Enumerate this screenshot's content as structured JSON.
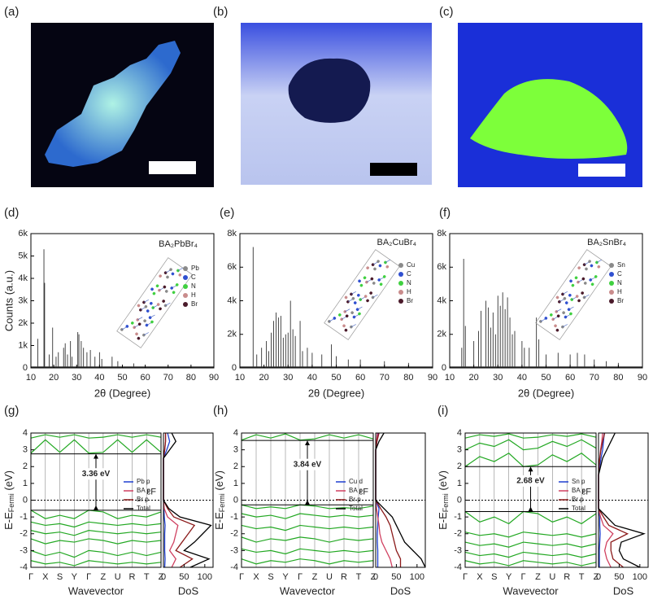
{
  "photos": [
    {
      "panel": "(a)"
    },
    {
      "panel": "(b)"
    },
    {
      "panel": "(c)"
    }
  ],
  "chart_data": [
    {
      "type": "stem",
      "panel": "(d)",
      "title": "BA₂PbBr₄",
      "xlabel": "2θ (Degree)",
      "ylabel": "Counts (a.u.)",
      "color": "#333333",
      "x": [
        13,
        15.7,
        16,
        18,
        19.5,
        21,
        22,
        24.3,
        25,
        26,
        27.3,
        28,
        30.5,
        31,
        32,
        33,
        34.5,
        36,
        38,
        40,
        41,
        45.5,
        48,
        55
      ],
      "values": [
        1300,
        5300,
        3800,
        600,
        1800,
        500,
        700,
        900,
        1100,
        600,
        1200,
        500,
        1600,
        1500,
        1200,
        900,
        700,
        800,
        500,
        700,
        400,
        500,
        300,
        200
      ],
      "xlim": [
        10,
        90
      ],
      "xticks": [
        10,
        20,
        30,
        40,
        50,
        60,
        70,
        80,
        90
      ],
      "ylim": [
        0,
        6000
      ],
      "yticks": [
        0,
        {
          "value": 1000,
          "label": "1k"
        },
        {
          "value": 2000,
          "label": "2k"
        },
        {
          "value": 3000,
          "label": "3k"
        },
        {
          "value": 4000,
          "label": "4k"
        },
        {
          "value": 5000,
          "label": "5k"
        },
        {
          "value": 6000,
          "label": "6k"
        }
      ],
      "inset_legend": [
        {
          "name": "Pb",
          "color": "#8a8a8a"
        },
        {
          "name": "C",
          "color": "#3050d0"
        },
        {
          "name": "N",
          "color": "#40d040"
        },
        {
          "name": "H",
          "color": "#c98c8c"
        },
        {
          "name": "Br",
          "color": "#4a1a2a"
        }
      ]
    },
    {
      "type": "stem",
      "panel": "(e)",
      "title": "BA₂CuBr₄",
      "xlabel": "2θ (Degree)",
      "color": "#333333",
      "x": [
        15.5,
        17,
        19,
        21,
        22,
        23,
        24,
        25,
        26,
        27,
        28,
        29,
        30,
        31,
        32,
        33,
        35,
        36,
        38,
        40,
        44,
        48,
        50,
        55,
        60,
        70,
        80
      ],
      "values": [
        7200,
        800,
        1200,
        1600,
        1000,
        2100,
        2800,
        3300,
        3000,
        3100,
        1800,
        2000,
        2100,
        4000,
        2300,
        1900,
        2800,
        1000,
        1200,
        900,
        800,
        1400,
        700,
        500,
        500,
        400,
        300
      ],
      "xlim": [
        10,
        90
      ],
      "xticks": [
        10,
        20,
        30,
        40,
        50,
        60,
        70,
        80,
        90
      ],
      "ylim": [
        0,
        8000
      ],
      "yticks": [
        0,
        {
          "value": 2000,
          "label": "2k"
        },
        {
          "value": 4000,
          "label": "4k"
        },
        {
          "value": 6000,
          "label": "6k"
        },
        {
          "value": 8000,
          "label": "8k"
        }
      ],
      "inset_legend": [
        {
          "name": "Cu",
          "color": "#8a8a8a"
        },
        {
          "name": "C",
          "color": "#3050d0"
        },
        {
          "name": "N",
          "color": "#40d040"
        },
        {
          "name": "H",
          "color": "#c98c8c"
        },
        {
          "name": "Br",
          "color": "#4a1a2a"
        }
      ]
    },
    {
      "type": "stem",
      "panel": "(f)",
      "title": "BA₂SnBr₄",
      "xlabel": "2θ (Degree)",
      "color": "#333333",
      "x": [
        15,
        15.8,
        16.5,
        20,
        22,
        23,
        25,
        26,
        27,
        28,
        29,
        30,
        31,
        32,
        33,
        34,
        35,
        36,
        37,
        40,
        41,
        43,
        46,
        47,
        50,
        55,
        60,
        63,
        66,
        70,
        75,
        80
      ],
      "values": [
        1200,
        6500,
        2500,
        1600,
        2200,
        3400,
        4000,
        3600,
        2400,
        3300,
        2000,
        4300,
        3700,
        4500,
        3500,
        4200,
        3000,
        2000,
        2200,
        1600,
        1200,
        1200,
        3000,
        1700,
        800,
        900,
        800,
        900,
        800,
        500,
        400,
        300
      ],
      "xlim": [
        10,
        90
      ],
      "xticks": [
        10,
        20,
        30,
        40,
        50,
        60,
        70,
        80,
        90
      ],
      "ylim": [
        0,
        8000
      ],
      "yticks": [
        0,
        {
          "value": 2000,
          "label": "2k"
        },
        {
          "value": 4000,
          "label": "4k"
        },
        {
          "value": 6000,
          "label": "6k"
        },
        {
          "value": 8000,
          "label": "8k"
        }
      ],
      "inset_legend": [
        {
          "name": "Sn",
          "color": "#8a8a8a"
        },
        {
          "name": "C",
          "color": "#3050d0"
        },
        {
          "name": "N",
          "color": "#40d040"
        },
        {
          "name": "H",
          "color": "#c98c8c"
        },
        {
          "name": "Br",
          "color": "#4a1a2a"
        }
      ]
    },
    {
      "type": "band",
      "panel": "(g)",
      "xlabel": "Wavevector",
      "ylabel": "E-E",
      "ylabel_sub": "Fermi",
      "ylabel_tail": " (eV)",
      "color": "#22a822",
      "categories": [
        "Γ",
        "X",
        "S",
        "Y",
        "Γ",
        "Z",
        "U",
        "R",
        "T",
        "Z"
      ],
      "series": [
        {
          "values": [
            2.8,
            3.6,
            2.85,
            3.6,
            2.8,
            2.85,
            3.6,
            2.85,
            3.6,
            2.85
          ]
        },
        {
          "values": [
            3.7,
            3.9,
            3.75,
            3.9,
            3.7,
            3.75,
            3.9,
            3.75,
            3.9,
            3.75
          ]
        },
        {
          "values": [
            -0.6,
            -1.1,
            -0.9,
            -1.1,
            -0.6,
            -0.7,
            -1.1,
            -0.9,
            -1.0,
            -0.7
          ]
        },
        {
          "values": [
            -1.3,
            -1.5,
            -1.4,
            -1.6,
            -1.3,
            -1.4,
            -1.5,
            -1.4,
            -1.5,
            -1.4
          ]
        },
        {
          "values": [
            -1.8,
            -2.0,
            -1.9,
            -2.1,
            -1.8,
            -1.9,
            -2.0,
            -1.9,
            -2.0,
            -1.9
          ]
        },
        {
          "values": [
            -2.3,
            -2.6,
            -2.4,
            -2.5,
            -2.3,
            -2.4,
            -2.6,
            -2.4,
            -2.5,
            -2.4
          ]
        },
        {
          "values": [
            -3.0,
            -3.3,
            -3.1,
            -3.4,
            -3.0,
            -3.1,
            -3.3,
            -3.1,
            -3.3,
            -3.1
          ]
        },
        {
          "values": [
            -3.6,
            -3.8,
            -3.7,
            -3.9,
            -3.6,
            -3.7,
            -3.8,
            -3.7,
            -3.8,
            -3.7
          ]
        }
      ],
      "ylim": [
        -4,
        4
      ],
      "yticks": [
        -4,
        -3,
        -2,
        -1,
        0,
        1,
        2,
        3,
        4
      ],
      "vbm": -0.6,
      "cbm": 2.76,
      "gap_label": "3.36 eV",
      "fermi_label": "εF",
      "dos": {
        "xlabel": "DoS",
        "xlim": [
          0,
          120
        ],
        "xticks": [
          0,
          50,
          100
        ],
        "y": [
          -4,
          -3.5,
          -3,
          -2.5,
          -2,
          -1.5,
          -1,
          -0.5,
          0,
          0.5,
          1,
          1.5,
          2,
          2.5,
          3,
          3.5,
          4
        ],
        "series": [
          {
            "name": "Pb p",
            "color": "#1f3fd0",
            "values": [
              3,
              4,
              3,
              3,
              3,
              4,
              2,
              1,
              0,
              0,
              0,
              0,
              0,
              0,
              8,
              15,
              10
            ]
          },
          {
            "name": "BA p",
            "color": "#d04060",
            "values": [
              20,
              30,
              15,
              25,
              30,
              35,
              10,
              2,
              0,
              0,
              0,
              0,
              0,
              0,
              3,
              5,
              5
            ]
          },
          {
            "name": "Br p",
            "color": "#8b1a1a",
            "values": [
              40,
              70,
              30,
              45,
              60,
              75,
              25,
              10,
              0,
              0,
              0,
              0,
              0,
              0,
              3,
              5,
              5
            ]
          },
          {
            "name": "Total",
            "color": "#000000",
            "values": [
              65,
              110,
              50,
              75,
              95,
              115,
              40,
              13,
              0,
              0,
              0,
              0,
              0,
              0,
              15,
              30,
              20
            ]
          }
        ]
      }
    },
    {
      "type": "band",
      "panel": "(h)",
      "xlabel": "Wavevector",
      "ylabel": "E-E",
      "ylabel_sub": "Fermi",
      "ylabel_tail": " (eV)",
      "color": "#22a822",
      "categories": [
        "Γ",
        "X",
        "S",
        "Y",
        "Γ",
        "Z",
        "U",
        "R",
        "T",
        "Z"
      ],
      "series": [
        {
          "values": [
            3.58,
            3.9,
            3.7,
            3.95,
            3.58,
            3.65,
            3.9,
            3.7,
            3.9,
            3.65
          ]
        },
        {
          "values": [
            -0.28,
            -0.5,
            -0.4,
            -0.5,
            -0.28,
            -0.35,
            -0.5,
            -0.45,
            -0.5,
            -0.35
          ]
        },
        {
          "values": [
            -0.8,
            -1.0,
            -0.9,
            -1.1,
            -0.8,
            -0.9,
            -1.0,
            -0.9,
            -1.0,
            -0.9
          ]
        },
        {
          "values": [
            -1.5,
            -1.7,
            -1.6,
            -1.8,
            -1.5,
            -1.6,
            -1.7,
            -1.6,
            -1.7,
            -1.6
          ]
        },
        {
          "values": [
            -2.2,
            -2.5,
            -2.3,
            -2.4,
            -2.2,
            -2.3,
            -2.5,
            -2.3,
            -2.4,
            -2.3
          ]
        },
        {
          "values": [
            -2.9,
            -3.1,
            -3.0,
            -3.2,
            -2.9,
            -3.0,
            -3.1,
            -3.0,
            -3.1,
            -3.0
          ]
        },
        {
          "values": [
            -3.5,
            -3.8,
            -3.6,
            -3.7,
            -3.5,
            -3.6,
            -3.8,
            -3.6,
            -3.7,
            -3.6
          ]
        }
      ],
      "ylim": [
        -4,
        4
      ],
      "yticks": [
        -4,
        -3,
        -2,
        -1,
        0,
        1,
        2,
        3,
        4
      ],
      "vbm": -0.28,
      "cbm": 3.56,
      "gap_label": "3.84 eV",
      "fermi_label": "εF",
      "dos": {
        "xlabel": "DoS",
        "xlim": [
          0,
          120
        ],
        "xticks": [
          0,
          50,
          100
        ],
        "y": [
          -4,
          -3.5,
          -3,
          -2.5,
          -2,
          -1.5,
          -1,
          -0.5,
          0,
          0.5,
          1,
          1.5,
          2,
          2.5,
          3,
          3.5,
          4
        ],
        "series": [
          {
            "name": "Cu d",
            "color": "#1f3fd0",
            "values": [
              5,
              5,
              5,
              4,
              4,
              5,
              6,
              8,
              0,
              0,
              0,
              0,
              0,
              0,
              0,
              3,
              6
            ]
          },
          {
            "name": "BA p",
            "color": "#d04060",
            "values": [
              40,
              35,
              25,
              15,
              10,
              8,
              5,
              2,
              0,
              0,
              0,
              0,
              0,
              0,
              0,
              2,
              4
            ]
          },
          {
            "name": "Br p",
            "color": "#8b1a1a",
            "values": [
              60,
              60,
              50,
              45,
              40,
              35,
              25,
              12,
              0,
              0,
              0,
              0,
              0,
              0,
              0,
              3,
              8
            ]
          },
          {
            "name": "Total",
            "color": "#000000",
            "values": [
              120,
              110,
              90,
              70,
              60,
              50,
              40,
              20,
              0,
              0,
              0,
              0,
              0,
              0,
              0,
              8,
              20
            ]
          }
        ]
      }
    },
    {
      "type": "band",
      "panel": "(i)",
      "xlabel": "Wavevector",
      "ylabel": "E-E",
      "ylabel_sub": "Fermi",
      "ylabel_tail": " (eV)",
      "color": "#22a822",
      "categories": [
        "Γ",
        "X",
        "S",
        "Y",
        "Γ",
        "Z",
        "U",
        "R",
        "T",
        "Z"
      ],
      "series": [
        {
          "values": [
            2.0,
            2.6,
            2.3,
            2.8,
            2.0,
            2.1,
            2.7,
            2.3,
            2.8,
            2.1
          ]
        },
        {
          "values": [
            3.0,
            3.4,
            3.2,
            3.6,
            3.0,
            3.1,
            3.5,
            3.2,
            3.6,
            3.1
          ]
        },
        {
          "values": [
            3.7,
            3.9,
            3.8,
            3.95,
            3.7,
            3.75,
            3.9,
            3.8,
            3.95,
            3.75
          ]
        },
        {
          "values": [
            -0.68,
            -1.3,
            -1.0,
            -1.4,
            -0.68,
            -0.8,
            -1.3,
            -1.0,
            -1.4,
            -0.8
          ]
        },
        {
          "values": [
            -1.9,
            -2.1,
            -2.0,
            -2.2,
            -1.9,
            -2.0,
            -2.1,
            -2.0,
            -2.2,
            -2.0
          ]
        },
        {
          "values": [
            -2.5,
            -2.7,
            -2.6,
            -2.8,
            -2.5,
            -2.6,
            -2.7,
            -2.6,
            -2.8,
            -2.6
          ]
        },
        {
          "values": [
            -3.1,
            -3.3,
            -3.2,
            -3.4,
            -3.1,
            -3.2,
            -3.3,
            -3.2,
            -3.4,
            -3.2
          ]
        },
        {
          "values": [
            -3.6,
            -3.8,
            -3.7,
            -3.9,
            -3.6,
            -3.7,
            -3.8,
            -3.7,
            -3.9,
            -3.7
          ]
        }
      ],
      "ylim": [
        -4,
        4
      ],
      "yticks": [
        -4,
        -3,
        -2,
        -1,
        0,
        1,
        2,
        3,
        4
      ],
      "vbm": -0.68,
      "cbm": 2.0,
      "gap_label": "2.68 eV",
      "fermi_label": "εF",
      "dos": {
        "xlabel": "DoS",
        "xlim": [
          0,
          120
        ],
        "xticks": [
          0,
          50,
          100
        ],
        "y": [
          -4,
          -3.5,
          -3,
          -2.5,
          -2,
          -1.5,
          -1,
          -0.5,
          0,
          0.5,
          1,
          1.5,
          2,
          2.5,
          3,
          3.5,
          4
        ],
        "series": [
          {
            "name": "Sn p",
            "color": "#1f3fd0",
            "values": [
              2,
              2,
              2,
              3,
              4,
              3,
              3,
              0,
              0,
              0,
              0,
              0,
              3,
              6,
              10,
              12,
              14
            ]
          },
          {
            "name": "BA p",
            "color": "#d04060",
            "values": [
              30,
              20,
              15,
              20,
              35,
              12,
              5,
              0,
              0,
              0,
              0,
              0,
              1,
              3,
              5,
              8,
              10
            ]
          },
          {
            "name": "Br p",
            "color": "#8b1a1a",
            "values": [
              60,
              35,
              30,
              30,
              70,
              25,
              12,
              0,
              0,
              0,
              0,
              0,
              1,
              3,
              6,
              10,
              15
            ]
          },
          {
            "name": "Total",
            "color": "#000000",
            "values": [
              100,
              60,
              50,
              55,
              110,
              40,
              20,
              0,
              0,
              0,
              0,
              0,
              5,
              10,
              20,
              30,
              40
            ]
          }
        ]
      }
    }
  ]
}
